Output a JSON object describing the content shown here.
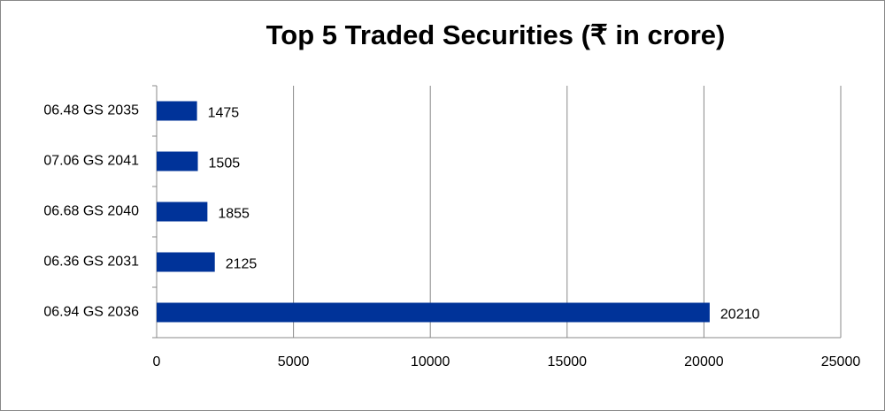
{
  "chart_data": {
    "type": "bar",
    "orientation": "horizontal",
    "title": "Top 5 Traded Securities (₹ in crore)",
    "categories": [
      "06.48 GS 2035",
      "07.06 GS 2041",
      "06.68 GS 2040",
      "06.36 GS 2031",
      "06.94 GS 2036"
    ],
    "values": [
      1475,
      1505,
      1855,
      2125,
      20210
    ],
    "color": "#003399",
    "xlim": [
      0,
      25000
    ],
    "xticks": [
      0,
      5000,
      10000,
      15000,
      20000,
      25000
    ],
    "grid": true
  }
}
